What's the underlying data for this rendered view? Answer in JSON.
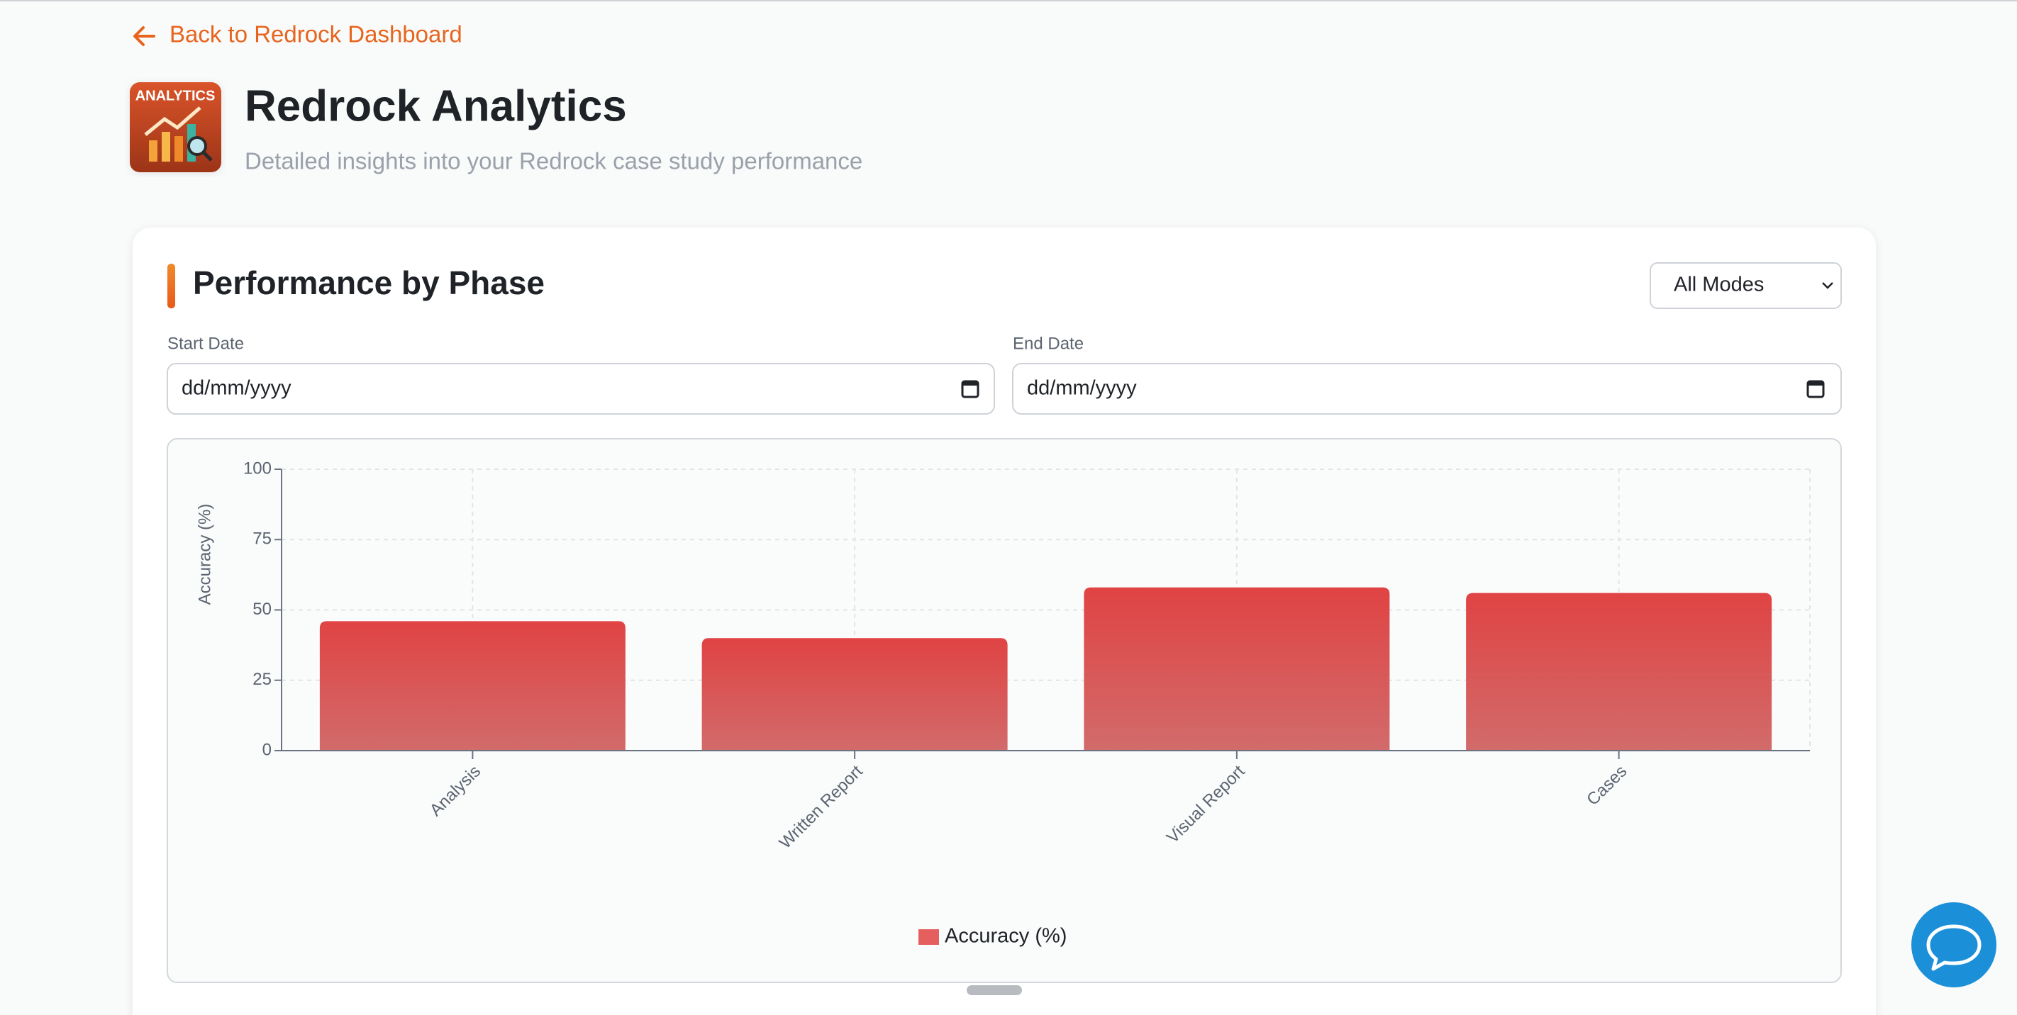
{
  "nav": {
    "back_link": "Back to Redrock Dashboard"
  },
  "header": {
    "logo_label": "ANALYTICS",
    "title": "Redrock Analytics",
    "subtitle": "Detailed insights into your Redrock case study performance"
  },
  "card": {
    "title": "Performance by Phase",
    "mode_select": "All Modes",
    "start_date": {
      "label": "Start Date",
      "placeholder": "dd/mm/yyyy"
    },
    "end_date": {
      "label": "End Date",
      "placeholder": "dd/mm/yyyy"
    }
  },
  "chart_data": {
    "type": "bar",
    "y_label": "Accuracy (%)",
    "categories": [
      "Analysis",
      "Written Report",
      "Visual Report",
      "Cases"
    ],
    "series": [
      {
        "name": "Accuracy (%)",
        "color": "#e04343",
        "values": [
          46,
          40,
          58,
          56
        ]
      }
    ],
    "ylim": [
      0,
      100
    ],
    "yticks": [
      0,
      25,
      50,
      75,
      100
    ],
    "grid": true,
    "legend": "bottom"
  }
}
